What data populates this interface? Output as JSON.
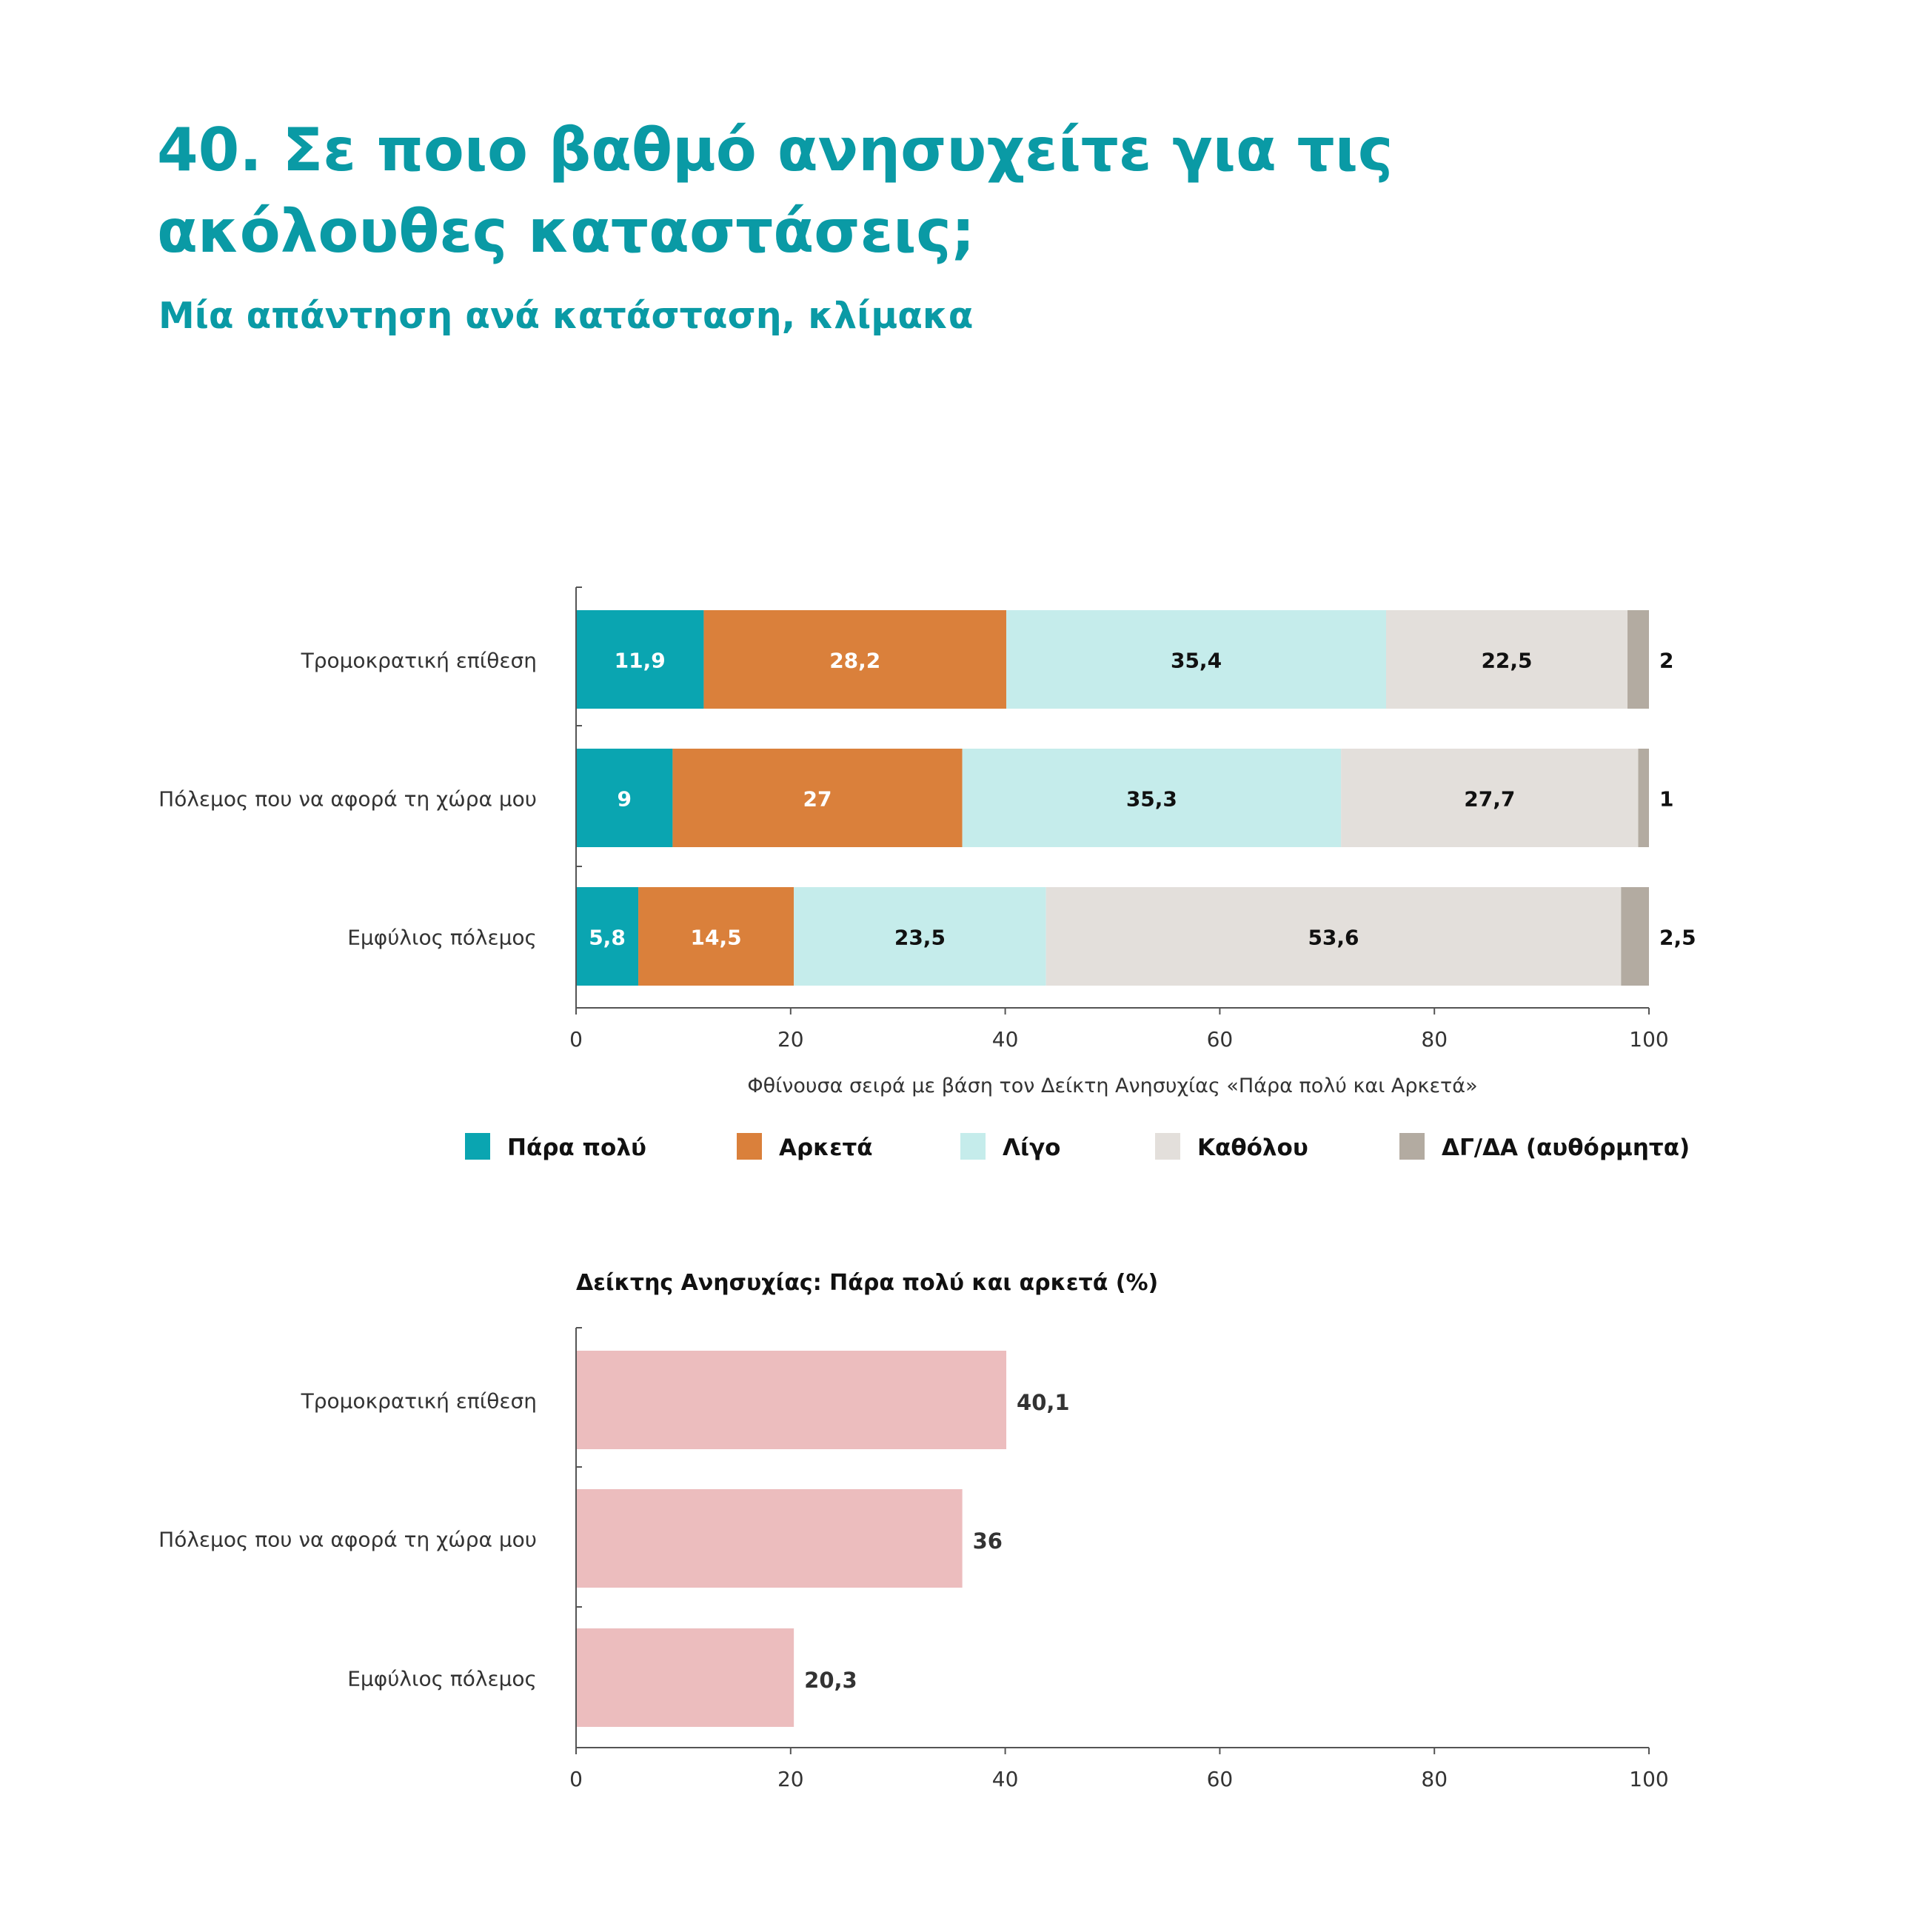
{
  "title": "40. Σε ποιο βαθμό ανησυχείτε για τις ακόλουθες καταστάσεις;",
  "subtitle": "Μία απάντηση ανά κατάσταση, κλίμακα",
  "colors": {
    "para_poly": "#0aa5b1",
    "arketa": "#da803b",
    "ligo": "#c5eceb",
    "katholou": "#e3dfdb",
    "dg_da": "#b3aba1",
    "index_bar": "#ecbdbe",
    "heading": "#0a9aa5"
  },
  "chart_data": [
    {
      "type": "bar",
      "orientation": "horizontal",
      "stacked": true,
      "categories": [
        "Τρομοκρατική επίθεση",
        "Πόλεμος που να αφορά τη χώρα μου",
        "Εμφύλιος πόλεμος"
      ],
      "series": [
        {
          "name": "Πάρα πολύ",
          "values": [
            11.9,
            9,
            5.8
          ],
          "labels": [
            "11,9",
            "9",
            "5,8"
          ],
          "color_key": "para_poly",
          "label_color": "#ffffff"
        },
        {
          "name": "Αρκετά",
          "values": [
            28.2,
            27,
            14.5
          ],
          "labels": [
            "28,2",
            "27",
            "14,5"
          ],
          "color_key": "arketa",
          "label_color": "#ffffff"
        },
        {
          "name": "Λίγο",
          "values": [
            35.4,
            35.3,
            23.5
          ],
          "labels": [
            "35,4",
            "35,3",
            "23,5"
          ],
          "color_key": "ligo",
          "label_color": "#111111"
        },
        {
          "name": "Καθόλου",
          "values": [
            22.5,
            27.7,
            53.6
          ],
          "labels": [
            "22,5",
            "27,7",
            "53,6"
          ],
          "color_key": "katholou",
          "label_color": "#111111"
        },
        {
          "name": "ΔΓ/ΔΑ (αυθόρμητα)",
          "values": [
            2,
            1,
            2.5
          ],
          "labels": [
            "2",
            "1",
            "2,5"
          ],
          "color_key": "dg_da",
          "label_color": "#111111",
          "label_outside": true
        }
      ],
      "xlim": [
        0,
        100
      ],
      "xticks": [
        "0",
        "20",
        "40",
        "60",
        "80",
        "100"
      ],
      "xlabel": "Φθίνουσα σειρά με βάση τον Δείκτη Ανησυχίας «Πάρα πολύ και Αρκετά»",
      "legend": "bottom"
    },
    {
      "type": "bar",
      "orientation": "horizontal",
      "title": "Δείκτης Ανησυχίας: Πάρα πολύ και αρκετά  (%)",
      "categories": [
        "Τρομοκρατική επίθεση",
        "Πόλεμος που να αφορά τη χώρα μου",
        "Εμφύλιος πόλεμος"
      ],
      "values": [
        40.1,
        36,
        20.3
      ],
      "labels": [
        "40,1",
        "36",
        "20,3"
      ],
      "color_key": "index_bar",
      "xlim": [
        0,
        100
      ],
      "xticks": [
        "0",
        "20",
        "40",
        "60",
        "80",
        "100"
      ]
    }
  ]
}
